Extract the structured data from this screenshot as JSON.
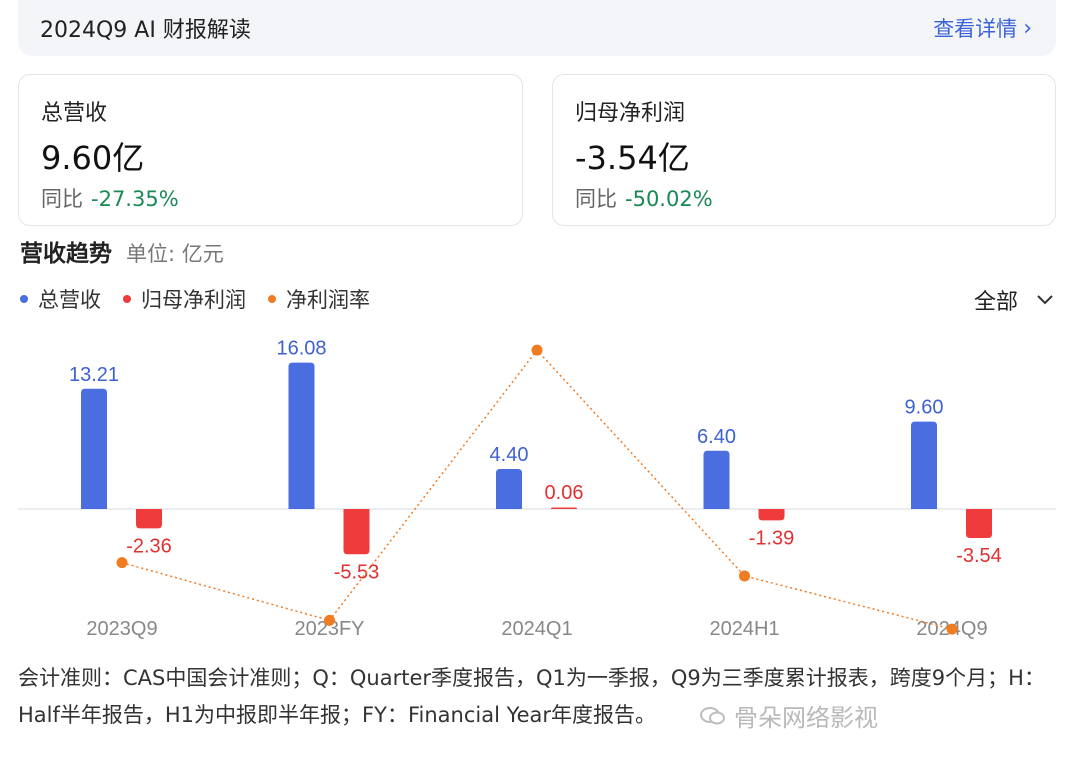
{
  "header": {
    "title": "2024Q9 AI 财报解读",
    "link_label": "查看详情",
    "link_icon": "chevron-right-icon"
  },
  "cards": [
    {
      "label": "总营收",
      "value": "9.60亿",
      "yoy_label": "同比",
      "yoy_value": "-27.35%"
    },
    {
      "label": "归母净利润",
      "value": "-3.54亿",
      "yoy_label": "同比",
      "yoy_value": "-50.02%"
    }
  ],
  "trend": {
    "title": "营收趋势",
    "unit": "单位: 亿元"
  },
  "legend": [
    {
      "name": "总营收",
      "color": "#4a6ee0"
    },
    {
      "name": "归母净利润",
      "color": "#ef3b3b"
    },
    {
      "name": "净利润率",
      "color": "#f07c22"
    }
  ],
  "range_select": {
    "value": "全部",
    "icon": "chevron-down-icon"
  },
  "chart_data": {
    "type": "bar",
    "categories": [
      "2023Q9",
      "2023FY",
      "2024Q1",
      "2024H1",
      "2024Q9"
    ],
    "series": [
      {
        "name": "总营收",
        "values": [
          13.21,
          16.08,
          4.4,
          6.4,
          9.6
        ],
        "labels": [
          "13.21",
          "16.08",
          "4.40",
          "6.40",
          "9.60"
        ],
        "color": "#4a6ee0"
      },
      {
        "name": "归母净利润",
        "values": [
          -2.36,
          -5.53,
          0.06,
          -1.39,
          -3.54
        ],
        "labels": [
          "-2.36",
          "-5.53",
          "0.06",
          "-1.39",
          "-3.54"
        ],
        "color": "#ef3b3b"
      },
      {
        "name": "净利润率",
        "type": "line",
        "values": [
          -17.9,
          -34.4,
          1.4,
          -21.7,
          -36.9
        ],
        "color": "#f07c22"
      }
    ],
    "grid": false,
    "legend_position": "top-left"
  },
  "footer": {
    "note": "会计准则：CAS中国会计准则；Q：Quarter季度报告，Q1为一季报，Q9为三季度累计报表，跨度9个月；H：Half半年报告，H1为中报即半年报；FY：Financial Year年度报告。"
  },
  "watermark": {
    "text": "骨朵网络影视",
    "icon": "wechat-icon"
  }
}
